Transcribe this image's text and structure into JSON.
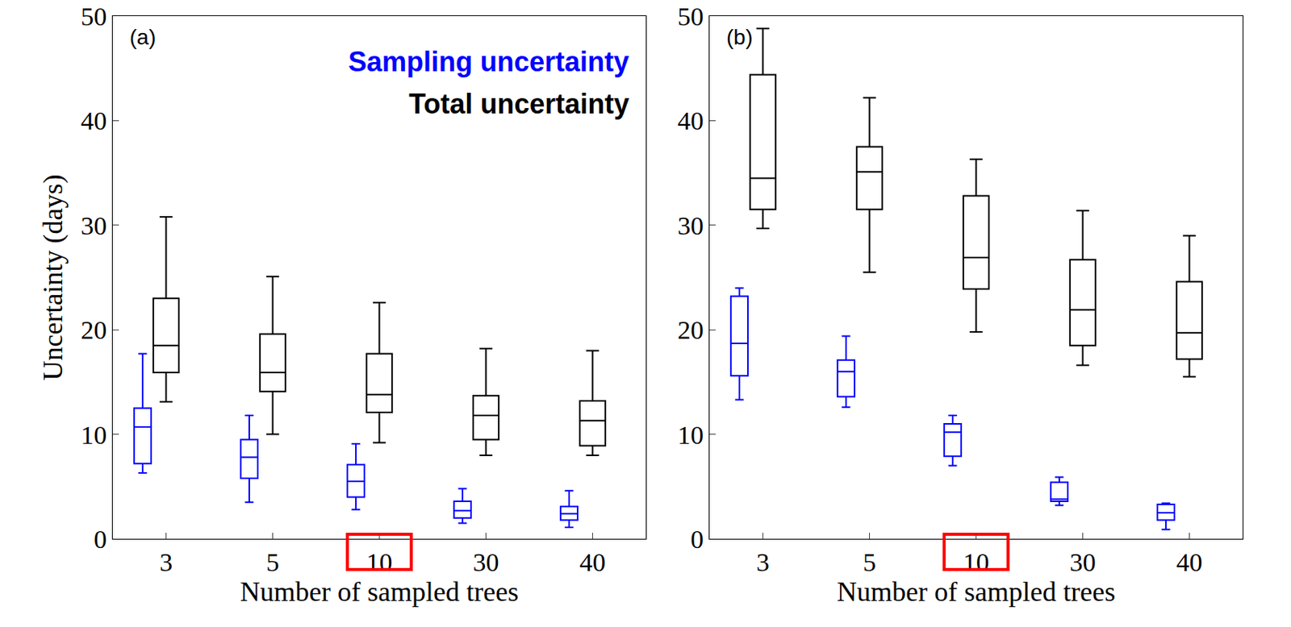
{
  "chart_data": [
    {
      "type": "box",
      "panel": "(a)",
      "x_label": "Number of sampled trees",
      "y_label": "Uncertainty (days)",
      "categories": [
        3,
        5,
        10,
        30,
        40
      ],
      "ylim": [
        0,
        50
      ],
      "yticks": [
        0,
        10,
        20,
        30,
        40,
        50
      ],
      "legend": "upper right",
      "grid": false,
      "series": [
        {
          "name": "Sampling uncertainty",
          "color": "#0000ff",
          "lowerfence": [
            6.3,
            3.5,
            2.8,
            1.5,
            1.1
          ],
          "q1": [
            7.2,
            5.8,
            4.0,
            2.0,
            1.8
          ],
          "median": [
            10.7,
            7.8,
            5.5,
            2.7,
            2.4
          ],
          "q3": [
            12.5,
            9.5,
            7.1,
            3.6,
            3.1
          ],
          "upperfence": [
            17.7,
            11.8,
            9.1,
            4.8,
            4.6
          ]
        },
        {
          "name": "Total uncertainty",
          "color": "#000000",
          "lowerfence": [
            13.1,
            10.0,
            9.2,
            8.0,
            8.0
          ],
          "q1": [
            15.9,
            14.1,
            12.1,
            9.5,
            8.9
          ],
          "median": [
            18.5,
            15.9,
            13.8,
            11.8,
            11.3
          ],
          "q3": [
            23.0,
            19.6,
            17.7,
            13.7,
            13.2
          ],
          "upperfence": [
            30.8,
            25.1,
            22.6,
            18.2,
            18.0
          ]
        }
      ]
    },
    {
      "type": "box",
      "panel": "(b)",
      "x_label": "Number of sampled trees",
      "categories": [
        3,
        5,
        10,
        30,
        40
      ],
      "ylim": [
        0,
        50
      ],
      "yticks": [
        0,
        10,
        20,
        30,
        40,
        50
      ],
      "grid": false,
      "series": [
        {
          "color": "#0000ff",
          "lowerfence": [
            13.3,
            12.6,
            7.0,
            3.2,
            0.9
          ],
          "q1": [
            15.6,
            13.6,
            7.9,
            3.6,
            1.8
          ],
          "median": [
            18.7,
            16.0,
            10.2,
            3.8,
            2.5
          ],
          "q3": [
            23.2,
            17.1,
            11.0,
            5.4,
            3.3
          ],
          "upperfence": [
            24.0,
            19.4,
            11.8,
            5.9,
            3.4
          ]
        },
        {
          "color": "#000000",
          "lowerfence": [
            29.7,
            25.5,
            19.8,
            16.6,
            15.5
          ],
          "q1": [
            31.5,
            31.5,
            23.9,
            18.5,
            17.2
          ],
          "median": [
            34.5,
            35.1,
            26.9,
            21.9,
            19.7
          ],
          "q3": [
            44.4,
            37.5,
            32.8,
            26.7,
            24.6
          ],
          "upperfence": [
            48.8,
            42.2,
            36.3,
            31.4,
            29.0
          ]
        }
      ]
    }
  ]
}
